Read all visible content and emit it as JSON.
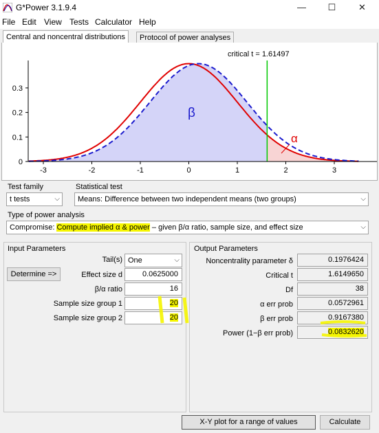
{
  "window": {
    "title": "G*Power 3.1.9.4",
    "minimize": "—",
    "maximize": "☐",
    "close": "✕"
  },
  "menu": [
    "File",
    "Edit",
    "View",
    "Tests",
    "Calculator",
    "Help"
  ],
  "tabs": {
    "distributions": "Central and noncentral distributions",
    "protocol": "Protocol of power analyses"
  },
  "plot": {
    "critical_label": "critical t =  1.61497",
    "beta_symbol": "β",
    "alpha_symbol": "α",
    "x_ticks": [
      "-3",
      "-2",
      "-1",
      "0",
      "1",
      "2",
      "3"
    ],
    "y_ticks": [
      "0.3",
      "0.2",
      "0.1",
      "0"
    ],
    "central_color": "#e00000",
    "noncentral_color": "#1a1acd",
    "critical_color": "#00c800"
  },
  "test_family": {
    "label": "Test family",
    "value": "t tests"
  },
  "statistical_test": {
    "label": "Statistical test",
    "value": "Means: Difference between two independent means (two groups)"
  },
  "power_analysis_type": {
    "label": "Type of power analysis",
    "prefix": "Compromise: ",
    "highlighted": "Compute implied α & power",
    "suffix": " – given β/α ratio, sample size, and effect size"
  },
  "input": {
    "title": "Input Parameters",
    "determine_button": "Determine =>",
    "tails_label": "Tail(s)",
    "tails_value": "One",
    "effect_label": "Effect size d",
    "effect_value": "0.0625000",
    "ratio_label": "β/α ratio",
    "ratio_value": "16",
    "n1_label": "Sample size group 1",
    "n1_value": "20",
    "n2_label": "Sample size group 2",
    "n2_value": "20"
  },
  "output": {
    "title": "Output Parameters",
    "ncp_label": "Noncentrality parameter δ",
    "ncp_value": "0.1976424",
    "crit_label": "Critical t",
    "crit_value": "1.6149650",
    "df_label": "Df",
    "df_value": "38",
    "alpha_label": "α err prob",
    "alpha_value": "0.0572961",
    "beta_label": "β err prob",
    "beta_value": "0.9167380",
    "power_label": "Power (1−β err prob)",
    "power_value": "0.0832620"
  },
  "buttons": {
    "xy_plot": "X-Y plot for a range of values",
    "calculate": "Calculate"
  },
  "highlight_color": "#f5f500"
}
